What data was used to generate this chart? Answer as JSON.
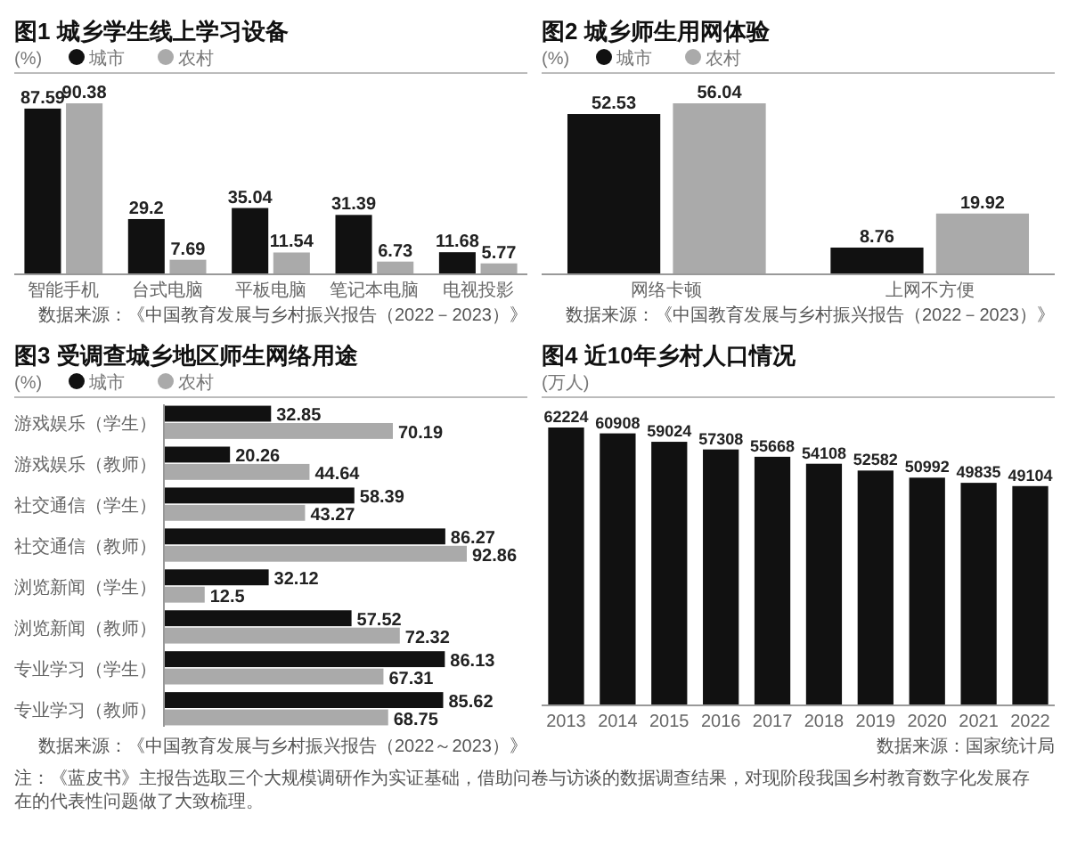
{
  "chart_data": [
    {
      "type": "bar",
      "title": "图1 城乡学生线上学习设备",
      "ylabel": "(%)",
      "legend": "top left",
      "data_labels": true,
      "categories": [
        "智能手机",
        "台式电脑",
        "平板电脑",
        "笔记本电脑",
        "电视投影"
      ],
      "series": [
        {
          "name": "城市",
          "color": "#111111",
          "values": [
            87.59,
            29.2,
            35.04,
            31.39,
            11.68
          ]
        },
        {
          "name": "农村",
          "color": "#aaaaaa",
          "values": [
            90.38,
            7.69,
            11.54,
            6.73,
            5.77
          ]
        }
      ],
      "annotations": [
        "数据来源：《中国教育发展与乡村振兴报告（2022－2023）》"
      ]
    },
    {
      "type": "bar",
      "title": "图2 城乡师生用网体验",
      "ylabel": "(%)",
      "legend": "top left",
      "data_labels": true,
      "categories": [
        "网络卡顿",
        "上网不方便"
      ],
      "series": [
        {
          "name": "城市",
          "color": "#111111",
          "values": [
            52.53,
            8.76
          ]
        },
        {
          "name": "农村",
          "color": "#aaaaaa",
          "values": [
            56.04,
            19.92
          ]
        }
      ],
      "annotations": [
        "数据来源：《中国教育发展与乡村振兴报告（2022－2023）》"
      ]
    },
    {
      "type": "bar",
      "orientation": "horizontal",
      "title": "图3 受调查城乡地区师生网络用途",
      "ylabel": "(%)",
      "legend": "top left",
      "data_labels": true,
      "categories": [
        "游戏娱乐（学生）",
        "游戏娱乐（教师）",
        "社交通信（学生）",
        "社交通信（教师）",
        "浏览新闻（学生）",
        "浏览新闻（教师）",
        "专业学习（学生）",
        "专业学习（教师）"
      ],
      "series": [
        {
          "name": "城市",
          "color": "#111111",
          "values": [
            32.85,
            20.26,
            58.39,
            86.27,
            32.12,
            57.52,
            86.13,
            85.62
          ]
        },
        {
          "name": "农村",
          "color": "#aaaaaa",
          "values": [
            70.19,
            44.64,
            43.27,
            92.86,
            12.5,
            72.32,
            67.31,
            68.75
          ]
        }
      ],
      "annotations": [
        "数据来源：《中国教育发展与乡村振兴报告（2022～2023）》",
        "注：《蓝皮书》主报告选取三个大规模调研作为实证基础，借助问卷与访谈的数据调查结果，对现阶段我国乡村教育数字化发展存在的代表性问题做了大致梳理。"
      ]
    },
    {
      "type": "bar",
      "title": "图4 近10年乡村人口情况",
      "ylabel": "(万人)",
      "data_labels": true,
      "categories": [
        "2013",
        "2014",
        "2015",
        "2016",
        "2017",
        "2018",
        "2019",
        "2020",
        "2021",
        "2022"
      ],
      "series": [
        {
          "color": "#111111",
          "values": [
            62224,
            60908,
            59024,
            57308,
            55668,
            54108,
            52582,
            50992,
            49835,
            49104
          ]
        }
      ],
      "annotations": [
        "数据来源：国家统计局"
      ]
    }
  ]
}
